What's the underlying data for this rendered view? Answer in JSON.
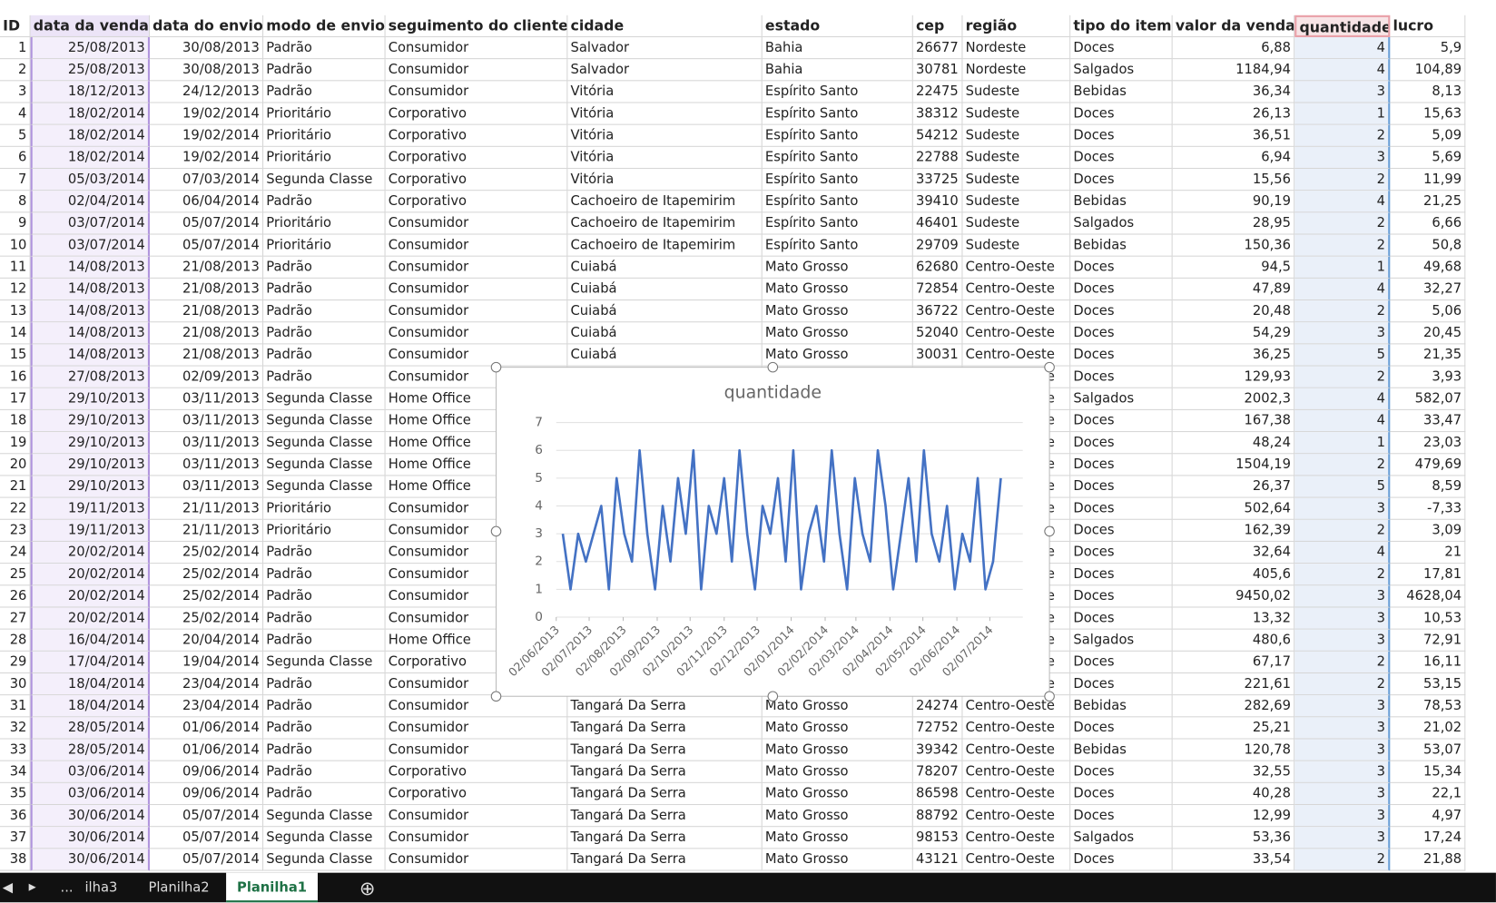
{
  "table": {
    "columns": [
      "ID",
      "data da venda",
      "data do envio",
      "modo de envio",
      "seguimento do cliente",
      "cidade",
      "estado",
      "cep",
      "região",
      "tipo do item",
      "valor da venda",
      "quantidade",
      "lucro"
    ],
    "rows": [
      [
        "1",
        "25/08/2013",
        "30/08/2013",
        "Padrão",
        "Consumidor",
        "Salvador",
        "Bahia",
        "26677",
        "Nordeste",
        "Doces",
        "6,88",
        "4",
        "5,9"
      ],
      [
        "2",
        "25/08/2013",
        "30/08/2013",
        "Padrão",
        "Consumidor",
        "Salvador",
        "Bahia",
        "30781",
        "Nordeste",
        "Salgados",
        "1184,94",
        "4",
        "104,89"
      ],
      [
        "3",
        "18/12/2013",
        "24/12/2013",
        "Padrão",
        "Consumidor",
        "Vitória",
        "Espírito Santo",
        "22475",
        "Sudeste",
        "Bebidas",
        "36,34",
        "3",
        "8,13"
      ],
      [
        "4",
        "18/02/2014",
        "19/02/2014",
        "Prioritário",
        "Corporativo",
        "Vitória",
        "Espírito Santo",
        "38312",
        "Sudeste",
        "Doces",
        "26,13",
        "1",
        "15,63"
      ],
      [
        "5",
        "18/02/2014",
        "19/02/2014",
        "Prioritário",
        "Corporativo",
        "Vitória",
        "Espírito Santo",
        "54212",
        "Sudeste",
        "Doces",
        "36,51",
        "2",
        "5,09"
      ],
      [
        "6",
        "18/02/2014",
        "19/02/2014",
        "Prioritário",
        "Corporativo",
        "Vitória",
        "Espírito Santo",
        "22788",
        "Sudeste",
        "Doces",
        "6,94",
        "3",
        "5,69"
      ],
      [
        "7",
        "05/03/2014",
        "07/03/2014",
        "Segunda Classe",
        "Corporativo",
        "Vitória",
        "Espírito Santo",
        "33725",
        "Sudeste",
        "Doces",
        "15,56",
        "2",
        "11,99"
      ],
      [
        "8",
        "02/04/2014",
        "06/04/2014",
        "Padrão",
        "Corporativo",
        "Cachoeiro de Itapemirim",
        "Espírito Santo",
        "39410",
        "Sudeste",
        "Bebidas",
        "90,19",
        "4",
        "21,25"
      ],
      [
        "9",
        "03/07/2014",
        "05/07/2014",
        "Prioritário",
        "Consumidor",
        "Cachoeiro de Itapemirim",
        "Espírito Santo",
        "46401",
        "Sudeste",
        "Salgados",
        "28,95",
        "2",
        "6,66"
      ],
      [
        "10",
        "03/07/2014",
        "05/07/2014",
        "Prioritário",
        "Consumidor",
        "Cachoeiro de Itapemirim",
        "Espírito Santo",
        "29709",
        "Sudeste",
        "Bebidas",
        "150,36",
        "2",
        "50,8"
      ],
      [
        "11",
        "14/08/2013",
        "21/08/2013",
        "Padrão",
        "Consumidor",
        "Cuiabá",
        "Mato Grosso",
        "62680",
        "Centro-Oeste",
        "Doces",
        "94,5",
        "1",
        "49,68"
      ],
      [
        "12",
        "14/08/2013",
        "21/08/2013",
        "Padrão",
        "Consumidor",
        "Cuiabá",
        "Mato Grosso",
        "72854",
        "Centro-Oeste",
        "Doces",
        "47,89",
        "4",
        "32,27"
      ],
      [
        "13",
        "14/08/2013",
        "21/08/2013",
        "Padrão",
        "Consumidor",
        "Cuiabá",
        "Mato Grosso",
        "36722",
        "Centro-Oeste",
        "Doces",
        "20,48",
        "2",
        "5,06"
      ],
      [
        "14",
        "14/08/2013",
        "21/08/2013",
        "Padrão",
        "Consumidor",
        "Cuiabá",
        "Mato Grosso",
        "52040",
        "Centro-Oeste",
        "Doces",
        "54,29",
        "3",
        "20,45"
      ],
      [
        "15",
        "14/08/2013",
        "21/08/2013",
        "Padrão",
        "Consumidor",
        "Cuiabá",
        "Mato Grosso",
        "30031",
        "Centro-Oeste",
        "Doces",
        "36,25",
        "5",
        "21,35"
      ],
      [
        "16",
        "27/08/2013",
        "02/09/2013",
        "Padrão",
        "Consumidor",
        null,
        null,
        null,
        "Centro-Oeste",
        "Doces",
        "129,93",
        "2",
        "3,93"
      ],
      [
        "17",
        "29/10/2013",
        "03/11/2013",
        "Segunda Classe",
        "Home Office",
        null,
        null,
        null,
        "Centro-Oeste",
        "Salgados",
        "2002,3",
        "4",
        "582,07"
      ],
      [
        "18",
        "29/10/2013",
        "03/11/2013",
        "Segunda Classe",
        "Home Office",
        null,
        null,
        null,
        "Centro-Oeste",
        "Doces",
        "167,38",
        "4",
        "33,47"
      ],
      [
        "19",
        "29/10/2013",
        "03/11/2013",
        "Segunda Classe",
        "Home Office",
        null,
        null,
        null,
        "Centro-Oeste",
        "Doces",
        "48,24",
        "1",
        "23,03"
      ],
      [
        "20",
        "29/10/2013",
        "03/11/2013",
        "Segunda Classe",
        "Home Office",
        null,
        null,
        null,
        "Centro-Oeste",
        "Doces",
        "1504,19",
        "2",
        "479,69"
      ],
      [
        "21",
        "29/10/2013",
        "03/11/2013",
        "Segunda Classe",
        "Home Office",
        null,
        null,
        null,
        "Centro-Oeste",
        "Doces",
        "26,37",
        "5",
        "8,59"
      ],
      [
        "22",
        "19/11/2013",
        "21/11/2013",
        "Prioritário",
        "Consumidor",
        null,
        null,
        null,
        "Centro-Oeste",
        "Doces",
        "502,64",
        "3",
        "-7,33"
      ],
      [
        "23",
        "19/11/2013",
        "21/11/2013",
        "Prioritário",
        "Consumidor",
        null,
        null,
        null,
        "Centro-Oeste",
        "Doces",
        "162,39",
        "2",
        "3,09"
      ],
      [
        "24",
        "20/02/2014",
        "25/02/2014",
        "Padrão",
        "Consumidor",
        null,
        null,
        null,
        "Centro-Oeste",
        "Doces",
        "32,64",
        "4",
        "21"
      ],
      [
        "25",
        "20/02/2014",
        "25/02/2014",
        "Padrão",
        "Consumidor",
        null,
        null,
        null,
        "Centro-Oeste",
        "Doces",
        "405,6",
        "2",
        "17,81"
      ],
      [
        "26",
        "20/02/2014",
        "25/02/2014",
        "Padrão",
        "Consumidor",
        null,
        null,
        null,
        "Centro-Oeste",
        "Doces",
        "9450,02",
        "3",
        "4628,04"
      ],
      [
        "27",
        "20/02/2014",
        "25/02/2014",
        "Padrão",
        "Consumidor",
        null,
        null,
        null,
        "Centro-Oeste",
        "Doces",
        "13,32",
        "3",
        "10,53"
      ],
      [
        "28",
        "16/04/2014",
        "20/04/2014",
        "Padrão",
        "Home Office",
        null,
        null,
        null,
        "Centro-Oeste",
        "Salgados",
        "480,6",
        "3",
        "72,91"
      ],
      [
        "29",
        "17/04/2014",
        "19/04/2014",
        "Segunda Classe",
        "Corporativo",
        null,
        null,
        null,
        "Centro-Oeste",
        "Doces",
        "67,17",
        "2",
        "16,11"
      ],
      [
        "30",
        "18/04/2014",
        "23/04/2014",
        "Padrão",
        "Consumidor",
        null,
        null,
        null,
        "Centro-Oeste",
        "Doces",
        "221,61",
        "2",
        "53,15"
      ],
      [
        "31",
        "18/04/2014",
        "23/04/2014",
        "Padrão",
        "Consumidor",
        "Tangará Da Serra",
        "Mato Grosso",
        "24274",
        "Centro-Oeste",
        "Bebidas",
        "282,69",
        "3",
        "78,53"
      ],
      [
        "32",
        "28/05/2014",
        "01/06/2014",
        "Padrão",
        "Consumidor",
        "Tangará Da Serra",
        "Mato Grosso",
        "72752",
        "Centro-Oeste",
        "Doces",
        "25,21",
        "3",
        "21,02"
      ],
      [
        "33",
        "28/05/2014",
        "01/06/2014",
        "Padrão",
        "Consumidor",
        "Tangará Da Serra",
        "Mato Grosso",
        "39342",
        "Centro-Oeste",
        "Bebidas",
        "120,78",
        "3",
        "53,07"
      ],
      [
        "34",
        "03/06/2014",
        "09/06/2014",
        "Padrão",
        "Corporativo",
        "Tangará Da Serra",
        "Mato Grosso",
        "78207",
        "Centro-Oeste",
        "Doces",
        "32,55",
        "3",
        "15,34"
      ],
      [
        "35",
        "03/06/2014",
        "09/06/2014",
        "Padrão",
        "Corporativo",
        "Tangará Da Serra",
        "Mato Grosso",
        "86598",
        "Centro-Oeste",
        "Doces",
        "40,28",
        "3",
        "22,1"
      ],
      [
        "36",
        "30/06/2014",
        "05/07/2014",
        "Segunda Classe",
        "Consumidor",
        "Tangará Da Serra",
        "Mato Grosso",
        "88792",
        "Centro-Oeste",
        "Doces",
        "12,99",
        "3",
        "4,97"
      ],
      [
        "37",
        "30/06/2014",
        "05/07/2014",
        "Segunda Classe",
        "Consumidor",
        "Tangará Da Serra",
        "Mato Grosso",
        "98153",
        "Centro-Oeste",
        "Salgados",
        "53,36",
        "3",
        "17,24"
      ],
      [
        "38",
        "30/06/2014",
        "05/07/2014",
        "Segunda Classe",
        "Consumidor",
        "Tangará Da Serra",
        "Mato Grosso",
        "43121",
        "Centro-Oeste",
        "Doces",
        "33,54",
        "2",
        "21,88"
      ]
    ]
  },
  "chart_data": {
    "type": "line",
    "title": "quantidade",
    "color": "#4472c4",
    "grid": true,
    "x": [
      "08/06/2013",
      "15/06/2013",
      "22/06/2013",
      "29/06/2013",
      "06/07/2013",
      "13/07/2013",
      "20/07/2013",
      "27/07/2013",
      "03/08/2013",
      "10/08/2013",
      "17/08/2013",
      "24/08/2013",
      "31/08/2013",
      "07/09/2013",
      "14/09/2013",
      "21/09/2013",
      "28/09/2013",
      "05/10/2013",
      "12/10/2013",
      "19/10/2013",
      "26/10/2013",
      "02/11/2013",
      "09/11/2013",
      "16/11/2013",
      "23/11/2013",
      "30/11/2013",
      "07/12/2013",
      "14/12/2013",
      "21/12/2013",
      "28/12/2013",
      "04/01/2014",
      "11/01/2014",
      "18/01/2014",
      "25/01/2014",
      "01/02/2014",
      "08/02/2014",
      "15/02/2014",
      "22/02/2014",
      "01/03/2014",
      "08/03/2014",
      "15/03/2014",
      "22/03/2014",
      "29/03/2014",
      "05/04/2014",
      "12/04/2014",
      "19/04/2014",
      "26/04/2014",
      "03/05/2014",
      "10/05/2014",
      "17/05/2014",
      "24/05/2014",
      "31/05/2014",
      "07/06/2014",
      "14/06/2014",
      "21/06/2014",
      "28/06/2014",
      "05/07/2014",
      "12/07/2014"
    ],
    "values": [
      3,
      1,
      3,
      2,
      3,
      4,
      1,
      5,
      3,
      2,
      6,
      3,
      1,
      4,
      2,
      5,
      3,
      6,
      1,
      4,
      3,
      5,
      2,
      6,
      3,
      1,
      4,
      3,
      5,
      2,
      6,
      1,
      3,
      4,
      2,
      6,
      3,
      1,
      5,
      3,
      2,
      6,
      4,
      1,
      3,
      5,
      2,
      6,
      3,
      2,
      4,
      1,
      3,
      2,
      5,
      1,
      2,
      5
    ],
    "xlim": [
      "02/06/2013",
      "01/08/2014"
    ],
    "xticks": [
      "02/06/2013",
      "02/07/2013",
      "02/08/2013",
      "02/09/2013",
      "02/10/2013",
      "02/11/2013",
      "02/12/2013",
      "02/01/2014",
      "02/02/2014",
      "02/03/2014",
      "02/04/2014",
      "02/05/2014",
      "02/06/2014",
      "02/07/2014"
    ],
    "ylim": [
      0,
      7
    ],
    "yticks": [
      0,
      1,
      2,
      3,
      4,
      5,
      6,
      7
    ]
  },
  "sheet_tabs": [
    "...",
    "ilha3",
    "Planilha2",
    "Planilha1"
  ],
  "active_tab": 3
}
